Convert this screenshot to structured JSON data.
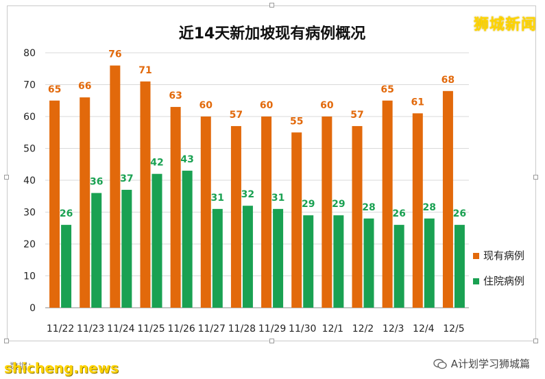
{
  "brand": "狮城新闻",
  "footer": {
    "site": "shicheng.news",
    "source_prefix": "数据：",
    "wechat": "A计划学习狮城篇"
  },
  "chart_data": {
    "type": "bar",
    "title": "近14天新加坡现有病例概况",
    "categories": [
      "11/22",
      "11/23",
      "11/24",
      "11/25",
      "11/26",
      "11/27",
      "11/28",
      "11/29",
      "11/30",
      "12/1",
      "12/2",
      "12/3",
      "12/4",
      "12/5"
    ],
    "series": [
      {
        "name": "现有病例",
        "color": "#e2690b",
        "values": [
          65,
          66,
          76,
          71,
          63,
          60,
          57,
          60,
          55,
          60,
          57,
          65,
          61,
          68
        ]
      },
      {
        "name": "住院病例",
        "color": "#1aa152",
        "values": [
          26,
          36,
          37,
          42,
          43,
          31,
          32,
          31,
          29,
          29,
          28,
          26,
          28,
          26
        ]
      }
    ],
    "ylim": [
      0,
      80
    ],
    "yticks": [
      0,
      10,
      20,
      30,
      40,
      50,
      60,
      70,
      80
    ],
    "grid": true,
    "legend": "right",
    "xlabel": "",
    "ylabel": ""
  }
}
